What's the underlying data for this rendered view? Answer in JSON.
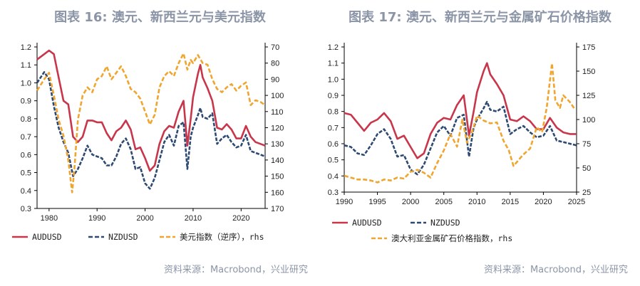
{
  "chart_data": [
    {
      "type": "line",
      "title": "图表 16: 澳元、新西兰元与美元指数",
      "x_ticks": [
        "1980",
        "1990",
        "2000",
        "2010",
        "2020"
      ],
      "x_range": [
        1977.5,
        2025
      ],
      "ylim": [
        0.3,
        1.2
      ],
      "y_ticks": [
        "1.2",
        "1.1",
        "1.0",
        "0.9",
        "0.8",
        "0.7",
        "0.6",
        "0.5",
        "0.4",
        "0.3"
      ],
      "y2lim_inverted": [
        70,
        170
      ],
      "y2_ticks": [
        "70",
        "80",
        "90",
        "100",
        "110",
        "120",
        "130",
        "140",
        "150",
        "160",
        "170"
      ],
      "legend": [
        "AUDUSD",
        "NZDUSD",
        "美元指数（逆序），rhs"
      ],
      "colors": {
        "aud": "#c8364b",
        "nzd": "#2f4a72",
        "index": "#f0a52e"
      },
      "series": [
        {
          "name": "AUDUSD",
          "axis": "left",
          "style": "solid",
          "x": [
            1977.5,
            1979,
            1980,
            1981,
            1982,
            1983,
            1984,
            1985,
            1986,
            1987,
            1988,
            1989,
            1990,
            1991,
            1992,
            1993,
            1994,
            1995,
            1996,
            1997,
            1998,
            1999,
            2000,
            2001,
            2002,
            2003,
            2004,
            2005,
            2006,
            2007,
            2008,
            2008.8,
            2009.5,
            2010,
            2011,
            2011.5,
            2012,
            2013,
            2014,
            2015,
            2016,
            2017,
            2018,
            2019,
            2020,
            2021,
            2022,
            2023,
            2024,
            2025
          ],
          "values": [
            1.13,
            1.16,
            1.18,
            1.16,
            1.03,
            0.9,
            0.88,
            0.7,
            0.67,
            0.7,
            0.79,
            0.79,
            0.78,
            0.78,
            0.72,
            0.68,
            0.73,
            0.75,
            0.79,
            0.74,
            0.63,
            0.64,
            0.58,
            0.51,
            0.54,
            0.66,
            0.73,
            0.76,
            0.75,
            0.84,
            0.9,
            0.65,
            0.8,
            0.92,
            1.05,
            1.1,
            1.03,
            0.97,
            0.9,
            0.75,
            0.74,
            0.77,
            0.74,
            0.69,
            0.69,
            0.76,
            0.7,
            0.67,
            0.66,
            0.65
          ]
        },
        {
          "name": "NZDUSD",
          "axis": "left",
          "style": "dash",
          "x": [
            1977.5,
            1979,
            1980,
            1981,
            1982,
            1983,
            1984,
            1985,
            1986,
            1987,
            1988,
            1989,
            1990,
            1991,
            1992,
            1993,
            1994,
            1995,
            1996,
            1997,
            1998,
            1999,
            2000,
            2001,
            2002,
            2003,
            2004,
            2005,
            2006,
            2007,
            2008,
            2008.8,
            2009.5,
            2010,
            2011,
            2011.5,
            2012,
            2013,
            2014,
            2015,
            2016,
            2017,
            2018,
            2019,
            2020,
            2021,
            2022,
            2023,
            2024,
            2025
          ],
          "values": [
            1.0,
            1.06,
            1.02,
            0.87,
            0.75,
            0.67,
            0.61,
            0.48,
            0.52,
            0.58,
            0.65,
            0.6,
            0.59,
            0.58,
            0.54,
            0.54,
            0.59,
            0.66,
            0.69,
            0.63,
            0.52,
            0.53,
            0.44,
            0.41,
            0.47,
            0.57,
            0.67,
            0.71,
            0.65,
            0.76,
            0.78,
            0.52,
            0.7,
            0.75,
            0.82,
            0.86,
            0.81,
            0.8,
            0.83,
            0.66,
            0.69,
            0.71,
            0.67,
            0.64,
            0.65,
            0.71,
            0.62,
            0.61,
            0.6,
            0.59
          ]
        },
        {
          "name": "美元指数（逆序），rhs",
          "axis": "right",
          "style": "dash",
          "x": [
            1977.5,
            1979,
            1980,
            1981,
            1982,
            1983,
            1984,
            1984.8,
            1985.3,
            1986,
            1987,
            1988,
            1989,
            1990,
            1991,
            1992,
            1993,
            1994,
            1995,
            1996,
            1997,
            1998,
            1999,
            2000,
            2001,
            2002,
            2003,
            2004,
            2005,
            2006,
            2007,
            2008,
            2008.8,
            2009.5,
            2010,
            2011,
            2012,
            2013,
            2014,
            2015,
            2016,
            2017,
            2018,
            2019,
            2020,
            2021,
            2022,
            2023,
            2024,
            2025
          ],
          "values": [
            97,
            90,
            86,
            100,
            115,
            125,
            140,
            160,
            145,
            115,
            100,
            95,
            98,
            90,
            88,
            82,
            90,
            86,
            82,
            88,
            96,
            98,
            102,
            110,
            118,
            112,
            95,
            88,
            85,
            88,
            80,
            74,
            84,
            78,
            80,
            75,
            80,
            81,
            90,
            96,
            98,
            95,
            93,
            97,
            94,
            92,
            106,
            103,
            104,
            106
          ]
        }
      ]
    },
    {
      "type": "line",
      "title": "图表 17: 澳元、新西兰元与金属矿石价格指数",
      "x_ticks": [
        "1990",
        "1995",
        "2000",
        "2005",
        "2010",
        "2015",
        "2020",
        "2025"
      ],
      "x_range": [
        1990,
        2025
      ],
      "ylim": [
        0.3,
        1.2
      ],
      "y_ticks": [
        "1.2",
        "1.1",
        "1.0",
        "0.9",
        "0.8",
        "0.7",
        "0.6",
        "0.5",
        "0.4",
        "0.3"
      ],
      "y2lim": [
        25,
        175
      ],
      "y2_ticks": [
        "175",
        "150",
        "125",
        "100",
        "75",
        "50",
        "25"
      ],
      "legend": [
        "AUDUSD",
        "NZDUSD",
        "澳大利亚金属矿石价格指数，rhs"
      ],
      "colors": {
        "aud": "#c8364b",
        "nzd": "#2f4a72",
        "index": "#f0a52e"
      },
      "series": [
        {
          "name": "AUDUSD",
          "axis": "left",
          "style": "solid",
          "x": [
            1990,
            1991,
            1992,
            1993,
            1994,
            1995,
            1996,
            1997,
            1998,
            1999,
            2000,
            2001,
            2002,
            2003,
            2004,
            2005,
            2006,
            2007,
            2008,
            2008.8,
            2009.5,
            2010,
            2011,
            2011.5,
            2012,
            2013,
            2014,
            2015,
            2016,
            2017,
            2018,
            2019,
            2020,
            2021,
            2022,
            2023,
            2024,
            2025
          ],
          "values": [
            0.79,
            0.78,
            0.73,
            0.68,
            0.73,
            0.75,
            0.79,
            0.74,
            0.63,
            0.65,
            0.58,
            0.51,
            0.54,
            0.66,
            0.73,
            0.76,
            0.75,
            0.84,
            0.9,
            0.65,
            0.8,
            0.92,
            1.05,
            1.1,
            1.03,
            0.97,
            0.9,
            0.75,
            0.74,
            0.77,
            0.74,
            0.69,
            0.69,
            0.76,
            0.7,
            0.67,
            0.66,
            0.66
          ]
        },
        {
          "name": "NZDUSD",
          "axis": "left",
          "style": "dash",
          "x": [
            1990,
            1991,
            1992,
            1993,
            1994,
            1995,
            1996,
            1997,
            1998,
            1999,
            2000,
            2001,
            2002,
            2003,
            2004,
            2005,
            2006,
            2007,
            2008,
            2008.8,
            2009.5,
            2010,
            2011,
            2011.5,
            2012,
            2013,
            2014,
            2015,
            2016,
            2017,
            2018,
            2019,
            2020,
            2021,
            2022,
            2023,
            2024,
            2025
          ],
          "values": [
            0.59,
            0.58,
            0.54,
            0.53,
            0.59,
            0.66,
            0.69,
            0.63,
            0.52,
            0.53,
            0.44,
            0.41,
            0.47,
            0.57,
            0.67,
            0.71,
            0.65,
            0.76,
            0.78,
            0.52,
            0.7,
            0.75,
            0.82,
            0.86,
            0.81,
            0.8,
            0.83,
            0.66,
            0.69,
            0.71,
            0.67,
            0.64,
            0.65,
            0.71,
            0.62,
            0.61,
            0.6,
            0.59
          ]
        },
        {
          "name": "澳大利亚金属矿石价格指数，rhs",
          "axis": "right",
          "style": "dash",
          "x": [
            1990,
            1991,
            1992,
            1993,
            1994,
            1995,
            1996,
            1997,
            1998,
            1999,
            2000,
            2001,
            2002,
            2003,
            2004,
            2005,
            2006,
            2007,
            2007.8,
            2008.5,
            2009.3,
            2010,
            2011,
            2012,
            2013,
            2014,
            2014.8,
            2015.5,
            2016.5,
            2017,
            2018,
            2019,
            2019.8,
            2020.5,
            2021.3,
            2021.8,
            2022.5,
            2023,
            2024,
            2024.8
          ],
          "values": [
            42,
            40,
            38,
            38,
            37,
            35,
            38,
            37,
            40,
            39,
            46,
            48,
            45,
            40,
            55,
            68,
            85,
            72,
            100,
            76,
            88,
            104,
            99,
            96,
            97,
            78,
            68,
            52,
            60,
            64,
            70,
            92,
            87,
            112,
            158,
            120,
            112,
            125,
            118,
            110
          ]
        }
      ]
    }
  ],
  "source1": "资料来源：Macrobond，兴业研究",
  "source2": "资料来源：Macrobond，兴业研究"
}
